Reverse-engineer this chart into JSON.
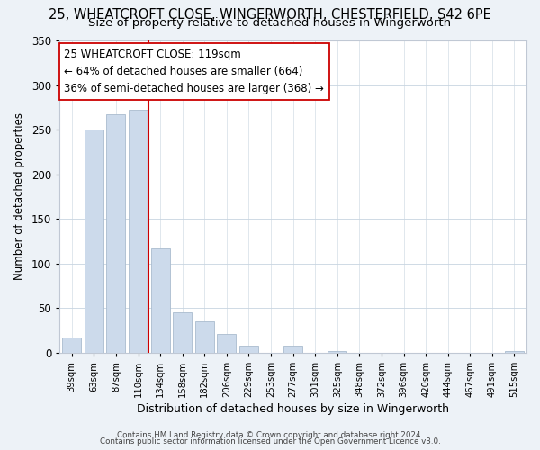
{
  "title": "25, WHEATCROFT CLOSE, WINGERWORTH, CHESTERFIELD, S42 6PE",
  "subtitle": "Size of property relative to detached houses in Wingerworth",
  "xlabel": "Distribution of detached houses by size in Wingerworth",
  "ylabel": "Number of detached properties",
  "bar_labels": [
    "39sqm",
    "63sqm",
    "87sqm",
    "110sqm",
    "134sqm",
    "158sqm",
    "182sqm",
    "206sqm",
    "229sqm",
    "253sqm",
    "277sqm",
    "301sqm",
    "325sqm",
    "348sqm",
    "372sqm",
    "396sqm",
    "420sqm",
    "444sqm",
    "467sqm",
    "491sqm",
    "515sqm"
  ],
  "bar_values": [
    17,
    250,
    267,
    272,
    117,
    45,
    35,
    21,
    8,
    0,
    8,
    0,
    2,
    0,
    0,
    0,
    0,
    0,
    0,
    0,
    2
  ],
  "bar_color": "#ccdaeb",
  "bar_edge_color": "#aabcce",
  "vline_x": 3.48,
  "vline_color": "#cc0000",
  "annotation_box_text": "25 WHEATCROFT CLOSE: 119sqm\n← 64% of detached houses are smaller (664)\n36% of semi-detached houses are larger (368) →",
  "ylim": [
    0,
    350
  ],
  "yticks": [
    0,
    50,
    100,
    150,
    200,
    250,
    300,
    350
  ],
  "footer_line1": "Contains HM Land Registry data © Crown copyright and database right 2024.",
  "footer_line2": "Contains public sector information licensed under the Open Government Licence v3.0.",
  "bg_color": "#edf2f7",
  "plot_bg_color": "#ffffff",
  "title_fontsize": 10.5,
  "subtitle_fontsize": 9.5,
  "ann_fontsize": 8.5
}
